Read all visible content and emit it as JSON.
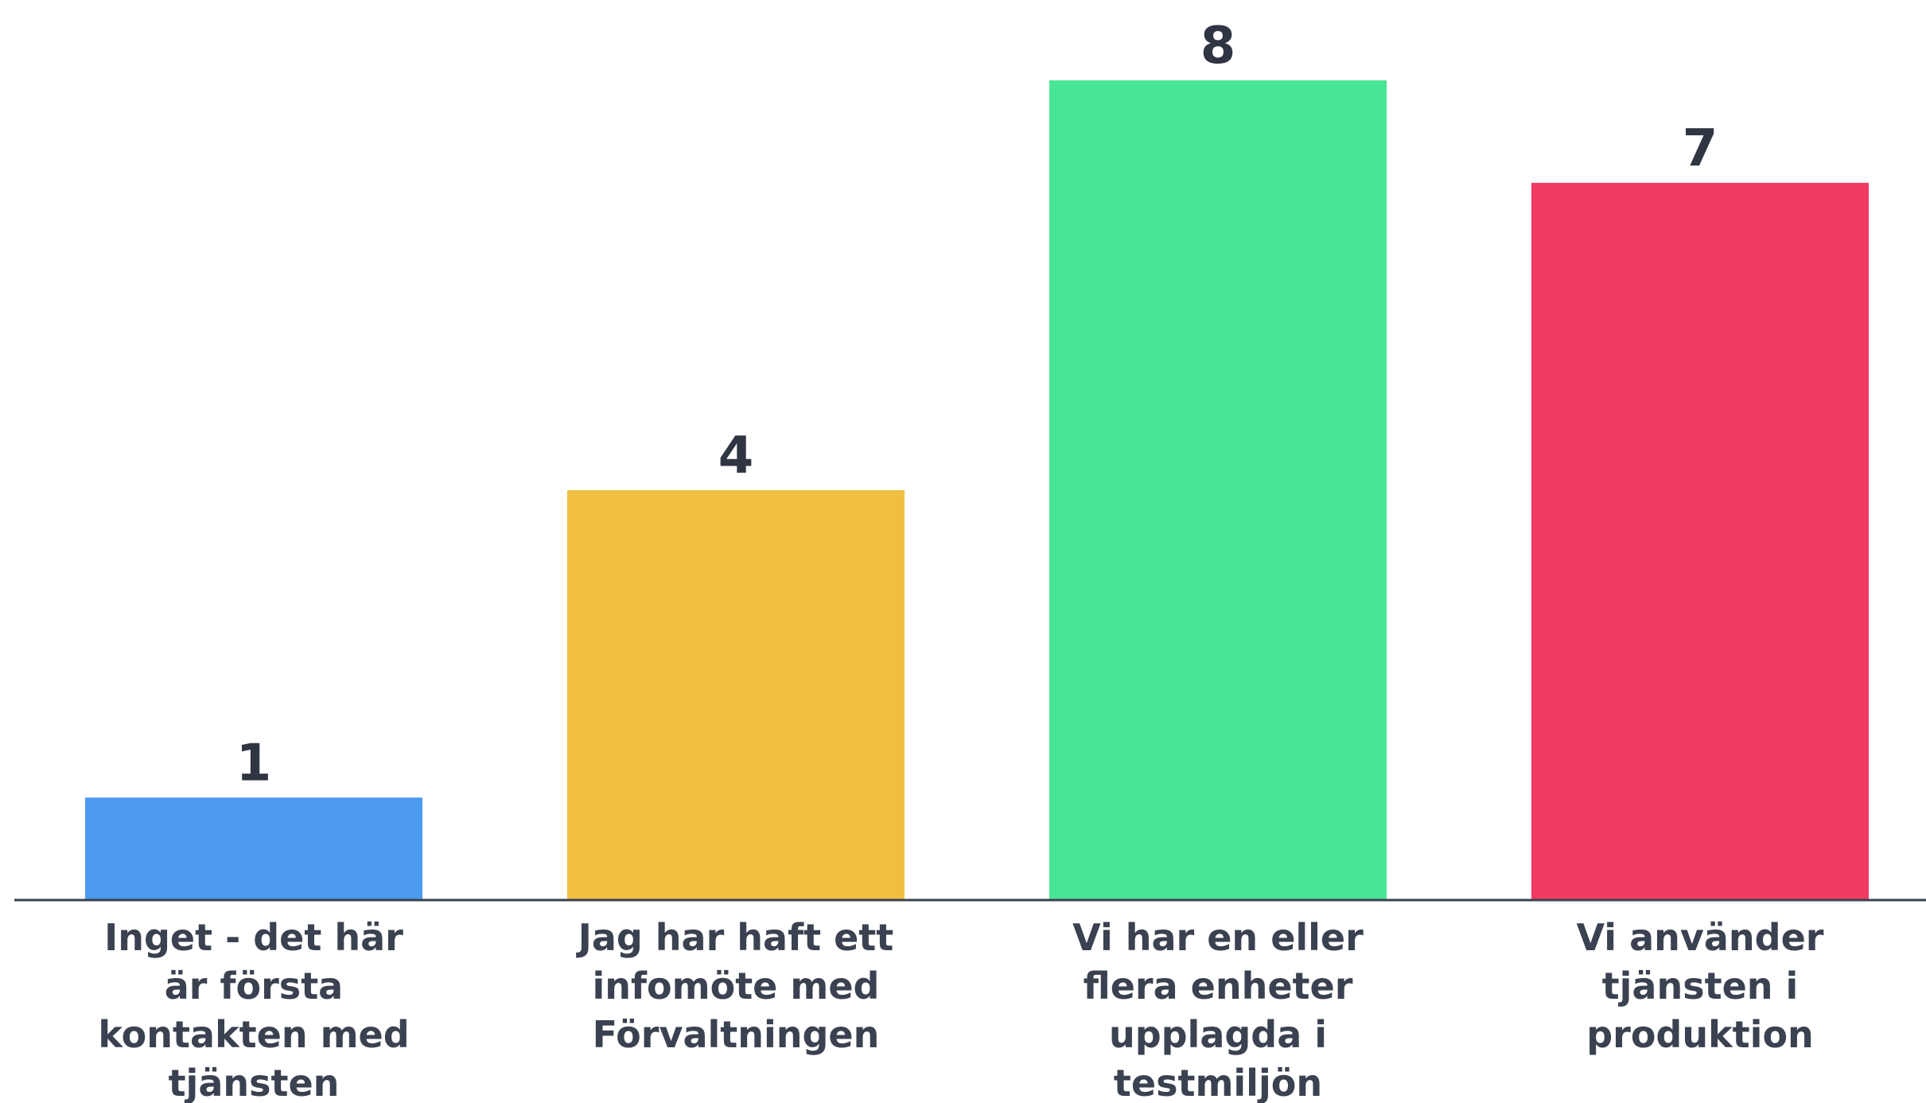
{
  "chart_data": {
    "type": "bar",
    "categories": [
      "Inget - det här är första kontakten med tjänsten",
      "Jag har haft ett infomöte med Förvaltningen",
      "Vi har en eller flera enheter upplagda i testmiljön",
      "Vi använder tjänsten i produktion"
    ],
    "category_lines": [
      [
        "Inget - det här",
        "är första",
        "kontakten med",
        "tjänsten"
      ],
      [
        "Jag har haft ett",
        "infomöte med",
        "Förvaltningen"
      ],
      [
        "Vi har en eller",
        "flera enheter",
        "upplagda i",
        "testmiljön"
      ],
      [
        "Vi använder",
        "tjänsten i",
        "produktion"
      ]
    ],
    "values": [
      1,
      4,
      8,
      7
    ],
    "value_labels": [
      "1",
      "4",
      "8",
      "7"
    ],
    "colors": [
      "#4c9aef",
      "#f0be41",
      "#48e594",
      "#f23b63"
    ],
    "title": "",
    "xlabel": "",
    "ylabel": "",
    "ylim": [
      0,
      8
    ],
    "grid": false,
    "legend": "none"
  }
}
